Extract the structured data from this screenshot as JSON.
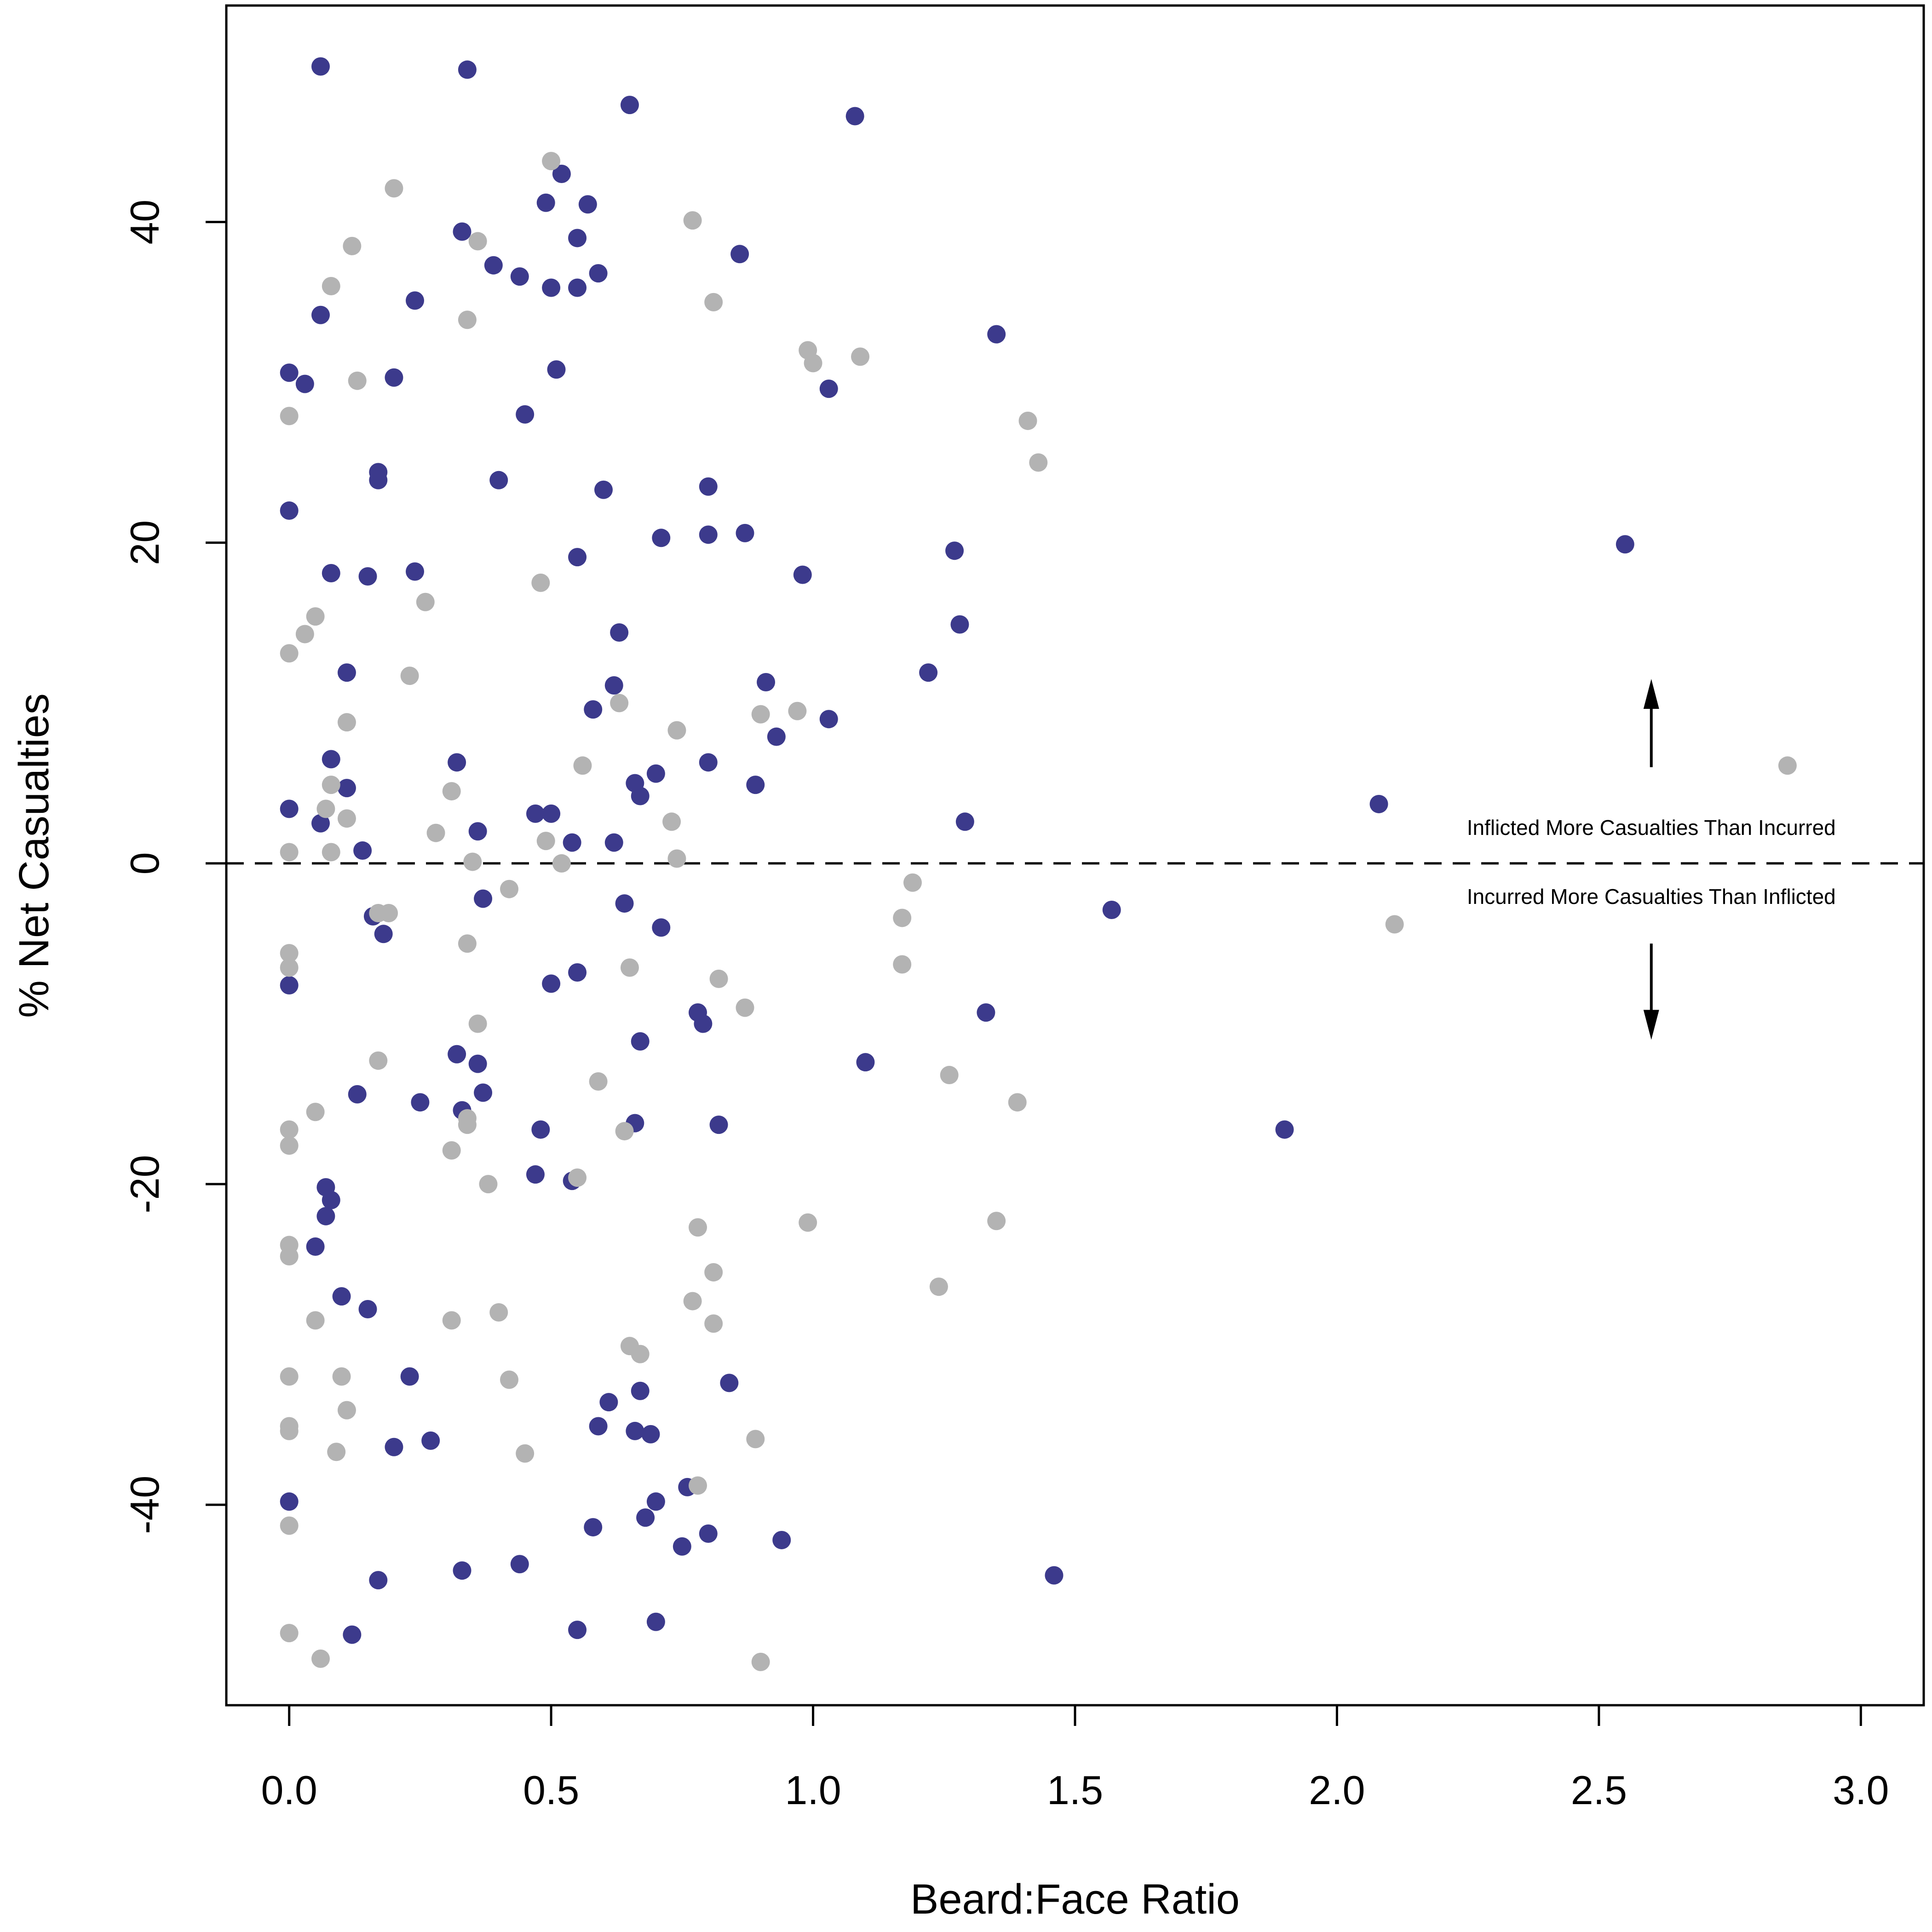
{
  "chart_data": {
    "type": "scatter",
    "xlabel": "Beard:Face Ratio",
    "ylabel": "% Net Casualties",
    "xlim": [
      -0.12,
      3.12
    ],
    "ylim": [
      -52.5,
      53.5
    ],
    "xticks": [
      0.0,
      0.5,
      1.0,
      1.5,
      2.0,
      2.5,
      3.0
    ],
    "xtick_labels": [
      "0.0",
      "0.5",
      "1.0",
      "1.5",
      "2.0",
      "2.5",
      "3.0"
    ],
    "yticks": [
      -40,
      -20,
      0,
      20,
      40
    ],
    "ytick_labels": [
      "-40",
      "-20",
      "0",
      "20",
      "40"
    ],
    "grid": false,
    "reference_line": {
      "y": 0,
      "style": "dashed"
    },
    "annotations": {
      "above": "Inflicted More Casualties Than Incurred",
      "below": "Incurred More Casualties Than Inflicted",
      "arrow_x": 2.6,
      "arrow_up": [
        6,
        11.5
      ],
      "arrow_down": [
        -5,
        -11
      ]
    },
    "colors": {
      "navy": "#3c3a8c",
      "gray": "#b3b3b3"
    },
    "series": [
      {
        "color": "#3c3a8c",
        "points": [
          [
            0.06,
            49.7
          ],
          [
            0.34,
            49.5
          ],
          [
            0.65,
            47.3
          ],
          [
            1.08,
            46.6
          ],
          [
            0.52,
            43.0
          ],
          [
            0.49,
            41.2
          ],
          [
            0.57,
            41.1
          ],
          [
            0.33,
            39.4
          ],
          [
            0.55,
            39.0
          ],
          [
            0.86,
            38.0
          ],
          [
            0.39,
            37.3
          ],
          [
            0.44,
            36.6
          ],
          [
            0.59,
            36.8
          ],
          [
            0.5,
            35.9
          ],
          [
            0.55,
            35.9
          ],
          [
            0.24,
            35.1
          ],
          [
            0.06,
            34.2
          ],
          [
            1.35,
            33.0
          ],
          [
            0.51,
            30.8
          ],
          [
            0.0,
            30.6
          ],
          [
            0.2,
            30.3
          ],
          [
            0.03,
            29.9
          ],
          [
            1.03,
            29.6
          ],
          [
            0.45,
            28.0
          ],
          [
            0.17,
            24.4
          ],
          [
            0.17,
            23.9
          ],
          [
            0.4,
            23.9
          ],
          [
            0.6,
            23.3
          ],
          [
            0.8,
            23.5
          ],
          [
            0.71,
            20.3
          ],
          [
            0.8,
            20.5
          ],
          [
            0.87,
            20.6
          ],
          [
            1.27,
            19.5
          ],
          [
            0.55,
            19.1
          ],
          [
            0.0,
            22.0
          ],
          [
            0.08,
            18.1
          ],
          [
            0.15,
            17.9
          ],
          [
            0.24,
            18.2
          ],
          [
            0.98,
            18.0
          ],
          [
            1.28,
            14.9
          ],
          [
            0.63,
            14.4
          ],
          [
            0.11,
            11.9
          ],
          [
            1.22,
            11.9
          ],
          [
            0.91,
            11.3
          ],
          [
            0.62,
            11.1
          ],
          [
            0.58,
            9.6
          ],
          [
            1.03,
            9.0
          ],
          [
            0.93,
            7.9
          ],
          [
            0.32,
            6.3
          ],
          [
            0.8,
            6.3
          ],
          [
            0.08,
            6.5
          ],
          [
            0.7,
            5.6
          ],
          [
            0.66,
            5.0
          ],
          [
            0.89,
            4.9
          ],
          [
            0.11,
            4.7
          ],
          [
            0.67,
            4.2
          ],
          [
            2.08,
            3.7
          ],
          [
            0.0,
            3.4
          ],
          [
            0.47,
            3.1
          ],
          [
            0.5,
            3.1
          ],
          [
            0.06,
            2.5
          ],
          [
            0.36,
            2.0
          ],
          [
            1.29,
            2.6
          ],
          [
            0.54,
            1.3
          ],
          [
            0.62,
            1.3
          ],
          [
            0.14,
            0.8
          ],
          [
            0.37,
            -2.2
          ],
          [
            0.64,
            -2.5
          ],
          [
            1.57,
            -2.9
          ],
          [
            0.16,
            -3.3
          ],
          [
            0.71,
            -4.0
          ],
          [
            0.18,
            -4.4
          ],
          [
            0.55,
            -6.8
          ],
          [
            0.5,
            -7.5
          ],
          [
            0.0,
            -7.6
          ],
          [
            0.78,
            -9.3
          ],
          [
            1.33,
            -9.3
          ],
          [
            0.79,
            -10.0
          ],
          [
            0.67,
            -11.1
          ],
          [
            1.1,
            -12.4
          ],
          [
            0.32,
            -11.9
          ],
          [
            0.36,
            -12.5
          ],
          [
            0.37,
            -14.3
          ],
          [
            0.13,
            -14.4
          ],
          [
            0.25,
            -14.9
          ],
          [
            0.33,
            -15.4
          ],
          [
            0.66,
            -16.2
          ],
          [
            0.82,
            -16.3
          ],
          [
            0.48,
            -16.6
          ],
          [
            1.9,
            -16.6
          ],
          [
            0.47,
            -19.4
          ],
          [
            0.54,
            -19.8
          ],
          [
            0.07,
            -20.2
          ],
          [
            0.08,
            -21.0
          ],
          [
            0.07,
            -22.0
          ],
          [
            0.05,
            -23.9
          ],
          [
            0.1,
            -27.0
          ],
          [
            0.15,
            -27.8
          ],
          [
            0.84,
            -32.4
          ],
          [
            0.23,
            -32.0
          ],
          [
            0.61,
            -33.6
          ],
          [
            0.67,
            -32.9
          ],
          [
            0.59,
            -35.1
          ],
          [
            0.66,
            -35.4
          ],
          [
            0.69,
            -35.6
          ],
          [
            0.27,
            -36.0
          ],
          [
            0.2,
            -36.4
          ],
          [
            0.76,
            -38.9
          ],
          [
            0.7,
            -39.8
          ],
          [
            0.0,
            -39.8
          ],
          [
            0.68,
            -40.8
          ],
          [
            0.58,
            -41.4
          ],
          [
            0.8,
            -41.8
          ],
          [
            0.94,
            -42.2
          ],
          [
            0.75,
            -42.6
          ],
          [
            0.44,
            -43.7
          ],
          [
            0.33,
            -44.1
          ],
          [
            0.17,
            -44.7
          ],
          [
            1.46,
            -44.4
          ],
          [
            0.7,
            -47.3
          ],
          [
            0.55,
            -47.8
          ],
          [
            0.12,
            -48.1
          ],
          [
            2.55,
            19.9
          ]
        ]
      },
      {
        "color": "#b3b3b3",
        "points": [
          [
            0.5,
            43.8
          ],
          [
            0.2,
            42.1
          ],
          [
            0.77,
            40.1
          ],
          [
            0.36,
            38.8
          ],
          [
            0.12,
            38.5
          ],
          [
            0.08,
            36.0
          ],
          [
            0.81,
            35.0
          ],
          [
            0.34,
            33.9
          ],
          [
            0.99,
            32.0
          ],
          [
            1.0,
            31.2
          ],
          [
            1.09,
            31.6
          ],
          [
            0.13,
            30.1
          ],
          [
            0.0,
            27.9
          ],
          [
            1.41,
            27.6
          ],
          [
            1.43,
            25.0
          ],
          [
            0.48,
            17.5
          ],
          [
            0.26,
            16.3
          ],
          [
            0.05,
            15.4
          ],
          [
            0.03,
            14.3
          ],
          [
            0.0,
            13.1
          ],
          [
            0.23,
            11.7
          ],
          [
            0.63,
            10.0
          ],
          [
            0.9,
            9.3
          ],
          [
            0.97,
            9.5
          ],
          [
            0.11,
            8.8
          ],
          [
            0.74,
            8.3
          ],
          [
            0.56,
            6.1
          ],
          [
            0.08,
            4.9
          ],
          [
            0.31,
            4.5
          ],
          [
            0.07,
            3.4
          ],
          [
            0.11,
            2.8
          ],
          [
            0.73,
            2.6
          ],
          [
            0.28,
            1.9
          ],
          [
            0.49,
            1.4
          ],
          [
            0.0,
            0.7
          ],
          [
            0.08,
            0.7
          ],
          [
            0.35,
            0.1
          ],
          [
            0.52,
            0.0
          ],
          [
            0.74,
            0.3
          ],
          [
            0.42,
            -1.6
          ],
          [
            1.19,
            -1.2
          ],
          [
            0.17,
            -3.1
          ],
          [
            0.19,
            -3.1
          ],
          [
            1.17,
            -3.4
          ],
          [
            2.11,
            -3.8
          ],
          [
            0.0,
            -5.6
          ],
          [
            0.34,
            -5.0
          ],
          [
            0.0,
            -6.5
          ],
          [
            0.65,
            -6.5
          ],
          [
            1.17,
            -6.3
          ],
          [
            0.82,
            -7.2
          ],
          [
            0.87,
            -9.0
          ],
          [
            0.36,
            -10.0
          ],
          [
            0.17,
            -12.3
          ],
          [
            1.26,
            -13.2
          ],
          [
            0.59,
            -13.6
          ],
          [
            1.39,
            -14.9
          ],
          [
            0.05,
            -15.5
          ],
          [
            0.34,
            -15.9
          ],
          [
            0.34,
            -16.3
          ],
          [
            0.0,
            -16.6
          ],
          [
            0.64,
            -16.7
          ],
          [
            0.0,
            -17.6
          ],
          [
            0.31,
            -17.9
          ],
          [
            0.55,
            -19.6
          ],
          [
            0.38,
            -20.0
          ],
          [
            0.78,
            -22.7
          ],
          [
            0.99,
            -22.4
          ],
          [
            1.35,
            -22.3
          ],
          [
            0.0,
            -23.8
          ],
          [
            0.0,
            -24.5
          ],
          [
            0.81,
            -25.5
          ],
          [
            1.24,
            -26.4
          ],
          [
            0.77,
            -27.3
          ],
          [
            0.05,
            -28.5
          ],
          [
            0.31,
            -28.5
          ],
          [
            0.4,
            -28.0
          ],
          [
            0.81,
            -28.7
          ],
          [
            0.65,
            -30.1
          ],
          [
            0.67,
            -30.6
          ],
          [
            0.0,
            -32.0
          ],
          [
            0.1,
            -32.0
          ],
          [
            0.42,
            -32.2
          ],
          [
            0.11,
            -34.1
          ],
          [
            0.0,
            -35.1
          ],
          [
            0.0,
            -35.4
          ],
          [
            0.89,
            -35.9
          ],
          [
            0.09,
            -36.7
          ],
          [
            0.45,
            -36.8
          ],
          [
            0.78,
            -38.8
          ],
          [
            0.0,
            -41.3
          ],
          [
            0.0,
            -48.0
          ],
          [
            0.06,
            -49.6
          ],
          [
            0.9,
            -49.8
          ],
          [
            2.86,
            6.1
          ]
        ]
      }
    ]
  }
}
